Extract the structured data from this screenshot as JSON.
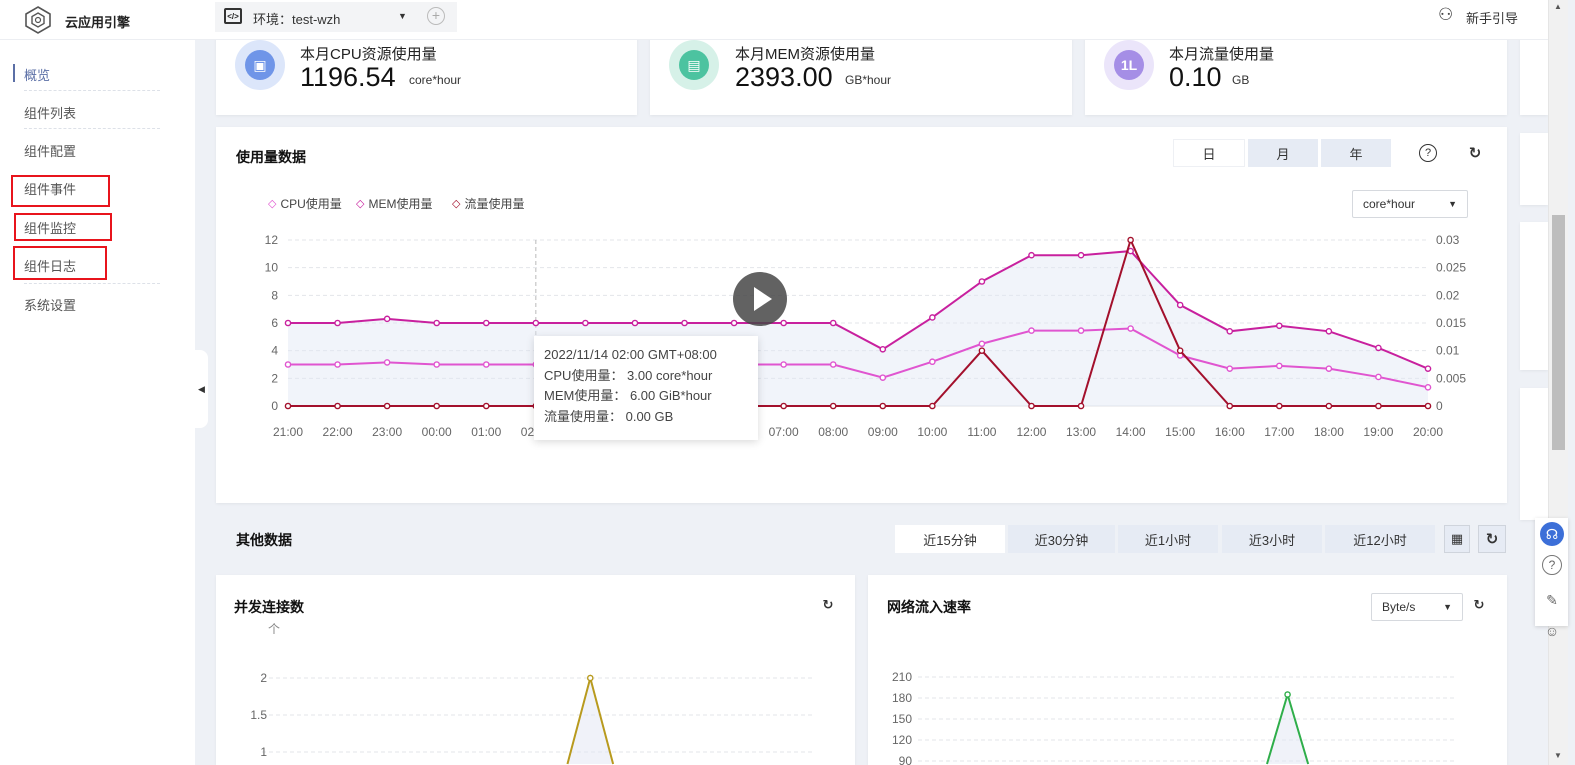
{
  "header": {
    "app_name": "云应用引擎",
    "env_label": "环境：test-wzh",
    "guide_label": "新手引导"
  },
  "sidebar": {
    "items": [
      {
        "label": "概览",
        "active": true
      },
      {
        "label": "组件列表"
      },
      {
        "label": "组件配置"
      },
      {
        "label": "组件事件",
        "highlighted": true
      },
      {
        "label": "组件监控",
        "highlighted": true
      },
      {
        "label": "组件日志",
        "highlighted": true
      },
      {
        "label": "系统设置"
      }
    ]
  },
  "stats": [
    {
      "label": "本月CPU资源使用量",
      "value": "1196.54",
      "unit": "core*hour",
      "color": "#6f95e8"
    },
    {
      "label": "本月MEM资源使用量",
      "value": "2393.00",
      "unit": "GB*hour",
      "color": "#4cc3a0"
    },
    {
      "label": "本月流量使用量",
      "value": "0.10",
      "unit": "GB",
      "color": "#a58ee6",
      "icon_text": "1L"
    }
  ],
  "usage": {
    "title": "使用量数据",
    "periods": [
      "日",
      "月",
      "年"
    ],
    "unit_select": "core*hour",
    "tooltip": {
      "time": "2022/11/14 02:00 GMT+08:00",
      "cpu": "CPU使用量：  3.00 core*hour",
      "mem": "MEM使用量：  6.00 GiB*hour",
      "traffic": "流量使用量：  0.00 GB"
    }
  },
  "other": {
    "title": "其他数据",
    "ranges": [
      "近15分钟",
      "近30分钟",
      "近1小时",
      "近3小时",
      "近12小时"
    ],
    "concurrency_title": "并发连接数",
    "network_title": "网络流入速率",
    "network_unit_select": "Byte/s"
  },
  "chart_data": [
    {
      "type": "line",
      "title": "使用量数据",
      "categories": [
        "21:00",
        "22:00",
        "23:00",
        "00:00",
        "01:00",
        "02:00",
        "03:00",
        "04:00",
        "05:00",
        "06:00",
        "07:00",
        "08:00",
        "09:00",
        "10:00",
        "11:00",
        "12:00",
        "13:00",
        "14:00",
        "15:00",
        "16:00",
        "17:00",
        "18:00",
        "19:00",
        "20:00"
      ],
      "y_left": {
        "ticks": [
          "0",
          "2",
          "4",
          "6",
          "8",
          "10",
          "12"
        ],
        "range": [
          0,
          12
        ]
      },
      "y_right": {
        "ticks": [
          "0",
          "0.005",
          "0.01",
          "0.015",
          "0.02",
          "0.025",
          "0.03"
        ],
        "range": [
          0,
          0.03
        ]
      },
      "grid": true,
      "legend": "top-left",
      "series": [
        {
          "name": "CPU使用量",
          "axis": "left",
          "color": "#e055d0",
          "values": [
            3,
            3,
            3.15,
            3,
            3,
            3,
            3,
            3,
            3,
            3,
            3,
            3,
            2.05,
            3.2,
            4.5,
            5.45,
            5.45,
            5.6,
            3.65,
            2.7,
            2.9,
            2.7,
            2.1,
            1.35
          ]
        },
        {
          "name": "MEM使用量",
          "axis": "left",
          "color": "#c8209e",
          "values": [
            6,
            6,
            6.3,
            6,
            6,
            6,
            6,
            6,
            6,
            6,
            6,
            6,
            4.1,
            6.4,
            9,
            10.9,
            10.9,
            11.2,
            7.3,
            5.4,
            5.8,
            5.4,
            4.2,
            2.7
          ]
        },
        {
          "name": "流量使用量",
          "axis": "right",
          "color": "#a3102c",
          "values": [
            0,
            0,
            0,
            0,
            0,
            0,
            0,
            0,
            0,
            0,
            0,
            0,
            0,
            0,
            0.01,
            0,
            0,
            0.03,
            0.01,
            0,
            0,
            0,
            0,
            0
          ]
        }
      ]
    },
    {
      "type": "line",
      "title": "并发连接数",
      "ylabel": "个",
      "y_ticks": [
        "1",
        "1.5",
        "2"
      ],
      "grid": true,
      "series": [
        {
          "color": "#b89a1e",
          "values": [
            0,
            0,
            0,
            0,
            0,
            0,
            0,
            0,
            2,
            0,
            0,
            0,
            0,
            0,
            0
          ]
        }
      ]
    },
    {
      "type": "line",
      "title": "网络流入速率",
      "y_ticks": [
        "90",
        "120",
        "150",
        "180",
        "210"
      ],
      "grid": true,
      "series": [
        {
          "color": "#2fae4a",
          "values": [
            0,
            0,
            0,
            0,
            0,
            0,
            0,
            0,
            0,
            0,
            185,
            0,
            0,
            0,
            0
          ]
        }
      ]
    }
  ]
}
